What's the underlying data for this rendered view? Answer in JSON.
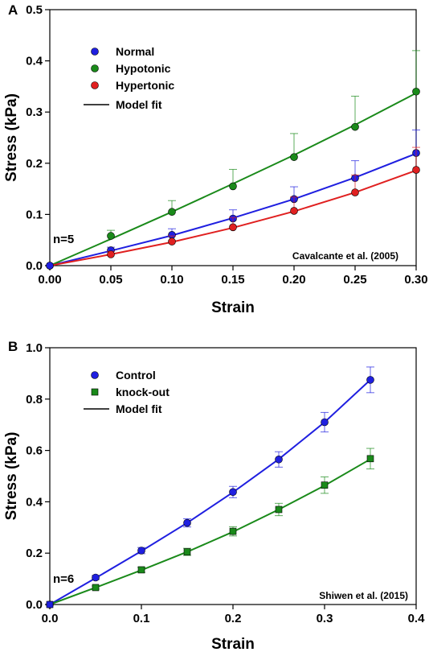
{
  "chart_data": [
    {
      "panel_label": "A",
      "type": "line",
      "xlabel": "Strain",
      "ylabel": "Stress (kPa)",
      "xlim": [
        0,
        0.3
      ],
      "ylim": [
        0,
        0.5
      ],
      "xticks": [
        "0.00",
        "0.05",
        "0.10",
        "0.15",
        "0.20",
        "0.25",
        "0.30"
      ],
      "yticks": [
        "0.0",
        "0.1",
        "0.2",
        "0.3",
        "0.4",
        "0.5"
      ],
      "annotation": "n=5",
      "citation": "Cavalcante et al. (2005)",
      "legend_position": "top-left",
      "fit_label": "Model fit",
      "series": [
        {
          "name": "Normal",
          "color": "#1f1fe0",
          "marker": "circle",
          "x": [
            0,
            0.05,
            0.1,
            0.15,
            0.2,
            0.25,
            0.3
          ],
          "y": [
            0,
            0.03,
            0.06,
            0.092,
            0.13,
            0.171,
            0.22
          ],
          "err": [
            0,
            0.006,
            0.012,
            0.017,
            0.024,
            0.034,
            0.045
          ],
          "fit": [
            0,
            0.029,
            0.059,
            0.093,
            0.13,
            0.172,
            0.219
          ]
        },
        {
          "name": "Hypotonic",
          "color": "#1a8a1a",
          "marker": "circle",
          "x": [
            0,
            0.05,
            0.1,
            0.15,
            0.2,
            0.25,
            0.3
          ],
          "y": [
            0,
            0.058,
            0.105,
            0.155,
            0.212,
            0.271,
            0.34
          ],
          "err": [
            0,
            0.011,
            0.022,
            0.033,
            0.046,
            0.06,
            0.08
          ],
          "fit": [
            0,
            0.052,
            0.105,
            0.16,
            0.216,
            0.275,
            0.337
          ]
        },
        {
          "name": "Hypertonic",
          "color": "#e02020",
          "marker": "circle",
          "x": [
            0,
            0.05,
            0.1,
            0.15,
            0.2,
            0.25,
            0.3
          ],
          "y": [
            0,
            0.022,
            0.047,
            0.075,
            0.107,
            0.143,
            0.187
          ],
          "err": [
            0,
            0.006,
            0.011,
            0.019,
            0.027,
            0.034,
            0.044
          ],
          "fit": [
            0,
            0.022,
            0.046,
            0.074,
            0.106,
            0.143,
            0.186
          ]
        }
      ]
    },
    {
      "panel_label": "B",
      "type": "line",
      "xlabel": "Strain",
      "ylabel": "Stress (kPa)",
      "xlim": [
        0,
        0.4
      ],
      "ylim": [
        0,
        1.0
      ],
      "xticks": [
        "0.0",
        "0.1",
        "0.2",
        "0.3",
        "0.4"
      ],
      "yticks": [
        "0.0",
        "0.2",
        "0.4",
        "0.6",
        "0.8",
        "1.0"
      ],
      "annotation": "n=6",
      "citation": "Shiwen et al. (2015)",
      "legend_position": "top-left",
      "fit_label": "Model fit",
      "series": [
        {
          "name": "Control",
          "color": "#1f1fe0",
          "marker": "circle",
          "x": [
            0,
            0.05,
            0.1,
            0.15,
            0.2,
            0.25,
            0.3,
            0.35
          ],
          "y": [
            0,
            0.105,
            0.21,
            0.318,
            0.438,
            0.565,
            0.71,
            0.875
          ],
          "err": [
            0,
            0.008,
            0.012,
            0.016,
            0.022,
            0.03,
            0.038,
            0.05
          ],
          "fit": [
            0,
            0.103,
            0.208,
            0.318,
            0.437,
            0.566,
            0.71,
            0.875
          ]
        },
        {
          "name": "knock-out",
          "color": "#1a8a1a",
          "marker": "square",
          "x": [
            0,
            0.05,
            0.1,
            0.15,
            0.2,
            0.25,
            0.3,
            0.35
          ],
          "y": [
            0,
            0.066,
            0.135,
            0.205,
            0.285,
            0.37,
            0.465,
            0.568
          ],
          "err": [
            0,
            0.006,
            0.01,
            0.014,
            0.018,
            0.024,
            0.032,
            0.04
          ],
          "fit": [
            0,
            0.066,
            0.134,
            0.205,
            0.283,
            0.37,
            0.463,
            0.566
          ]
        }
      ]
    }
  ]
}
